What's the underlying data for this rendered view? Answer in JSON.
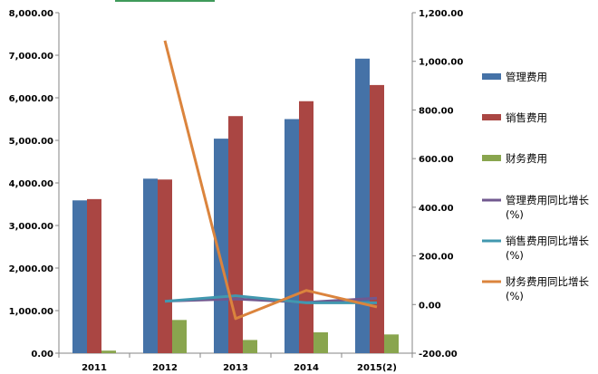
{
  "chart_data": {
    "type": "bar",
    "categories": [
      "2011",
      "2012",
      "2013",
      "2014",
      "2015(2)"
    ],
    "series": [
      {
        "name": "管理费用",
        "kind": "bar",
        "axis": "left",
        "color": "#4572A7",
        "values": [
          3590,
          4100,
          5040,
          5500,
          6920
        ]
      },
      {
        "name": "销售费用",
        "kind": "bar",
        "axis": "left",
        "color": "#AA4643",
        "values": [
          3620,
          4080,
          5570,
          5920,
          6300
        ]
      },
      {
        "name": "财务费用",
        "kind": "bar",
        "axis": "left",
        "color": "#89A54E",
        "values": [
          60,
          780,
          310,
          490,
          440
        ]
      },
      {
        "name": "管理费用同比增长(%)",
        "kind": "line",
        "axis": "right",
        "color": "#71588F",
        "values": [
          null,
          14,
          23,
          9,
          26
        ]
      },
      {
        "name": "销售费用同比增长(%)",
        "kind": "line",
        "axis": "right",
        "color": "#4198AF",
        "values": [
          null,
          13,
          36,
          7,
          7
        ]
      },
      {
        "name": "财务费用同比增长(%)",
        "kind": "line",
        "axis": "right",
        "color": "#DB843D",
        "values": [
          null,
          1085,
          -58,
          58,
          -10
        ]
      }
    ],
    "left_axis": {
      "min": 0,
      "max": 8000,
      "step": 1000,
      "ticks": [
        "0.00",
        "1,000.00",
        "2,000.00",
        "3,000.00",
        "4,000.00",
        "5,000.00",
        "6,000.00",
        "7,000.00",
        "8,000.00"
      ]
    },
    "right_axis": {
      "min": -200,
      "max": 1200,
      "step": 200,
      "ticks": [
        "-200.00",
        "0.00",
        "200.00",
        "400.00",
        "600.00",
        "800.00",
        "1,000.00",
        "1,200.00"
      ]
    },
    "legend": {
      "position": "right",
      "items": [
        {
          "lines": [
            "管理费用"
          ],
          "symbol": "bar",
          "color": "#4572A7"
        },
        {
          "lines": [
            "销售费用"
          ],
          "symbol": "bar",
          "color": "#AA4643"
        },
        {
          "lines": [
            "财务费用"
          ],
          "symbol": "bar",
          "color": "#89A54E"
        },
        {
          "lines": [
            "管理费用同比增长",
            "(%)"
          ],
          "symbol": "line",
          "color": "#71588F"
        },
        {
          "lines": [
            "销售费用同比增长",
            "(%)"
          ],
          "symbol": "line",
          "color": "#4198AF"
        },
        {
          "lines": [
            "财务费用同比增长",
            "(%)"
          ],
          "symbol": "line",
          "color": "#DB843D"
        }
      ]
    },
    "grid": false
  }
}
